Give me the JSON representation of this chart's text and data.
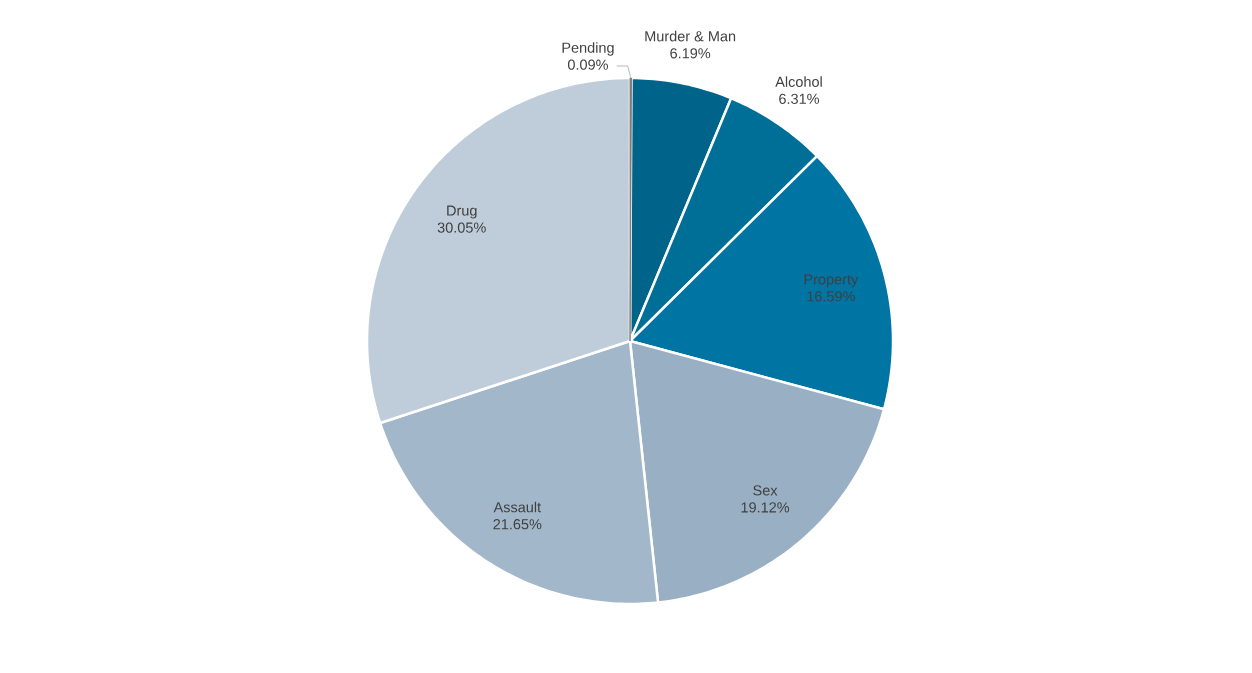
{
  "chart_data": {
    "type": "pie",
    "categories": [
      "Pending",
      "Murder & Man",
      "Alcohol",
      "Property",
      "Sex",
      "Assault",
      "Drug"
    ],
    "values": [
      0.09,
      6.19,
      6.31,
      16.59,
      19.12,
      21.65,
      30.05
    ],
    "value_labels": [
      "0.09%",
      "6.19%",
      "6.31%",
      "16.59%",
      "19.12%",
      "21.65%",
      "30.05%"
    ],
    "colors": [
      "#7f7f7f",
      "#00648a",
      "#006f98",
      "#0074a2",
      "#98afc4",
      "#a2b7ca",
      "#bfcdda"
    ]
  }
}
